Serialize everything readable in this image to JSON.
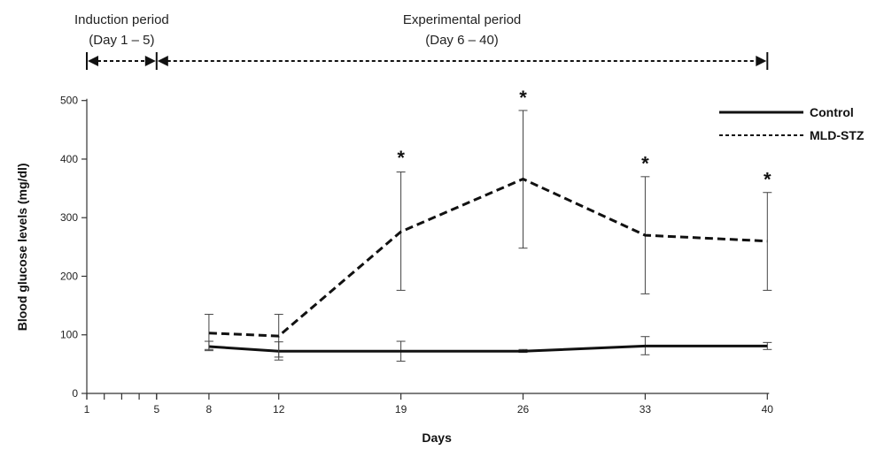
{
  "chart_data": {
    "type": "line",
    "xlabel": "Days",
    "ylabel": "Blood glucose levels (mg/dl)",
    "ylim": [
      0,
      500
    ],
    "yticks": [
      0,
      100,
      200,
      300,
      400,
      500
    ],
    "xticks_labeled": [
      1,
      5,
      8,
      12,
      19,
      26,
      33,
      40
    ],
    "xticks_minor": [
      1,
      2,
      3,
      4,
      5
    ],
    "grid": false,
    "legend_placement": "top-right",
    "periods": [
      {
        "label_line1": "Induction period",
        "label_line2": "(Day 1 – 5)",
        "start": 1,
        "end": 5
      },
      {
        "label_line1": "Experimental period",
        "label_line2": "(Day 6 – 40)",
        "start": 5,
        "end": 40
      }
    ],
    "series": [
      {
        "name": "Control",
        "style": "solid",
        "x": [
          8,
          12,
          19,
          26,
          33,
          40
        ],
        "y": [
          80,
          72,
          72,
          72,
          81,
          81
        ],
        "err_low": [
          73,
          57,
          55,
          70,
          66,
          75
        ],
        "err_high": [
          89,
          88,
          89,
          75,
          97,
          87
        ]
      },
      {
        "name": "MLD-STZ",
        "style": "dashed",
        "x": [
          8,
          12,
          19,
          26,
          33,
          40
        ],
        "y": [
          103,
          98,
          276,
          366,
          270,
          260
        ],
        "err_low": [
          75,
          62,
          176,
          248,
          170,
          176
        ],
        "err_high": [
          135,
          135,
          378,
          483,
          370,
          343
        ]
      }
    ],
    "significance": {
      "marker": "*",
      "x": [
        19,
        26,
        33,
        40
      ],
      "y": [
        412,
        515,
        402,
        375
      ]
    }
  }
}
